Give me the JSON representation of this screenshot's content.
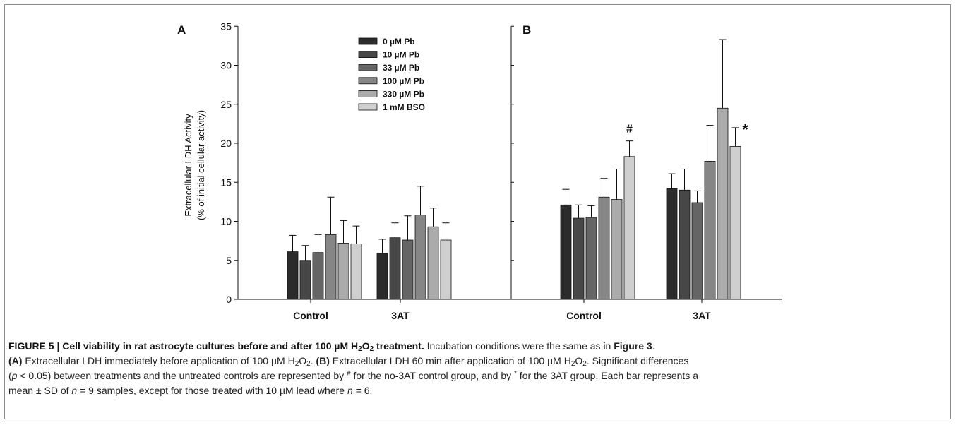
{
  "chart_data": [
    {
      "panel_label": "A",
      "type": "bar",
      "ylabel_line1": "Extracellular LDH Activity",
      "ylabel_line2": "(% of initial cellular activity)",
      "ylim": [
        0,
        35
      ],
      "yticks": [
        "0",
        "5",
        "10",
        "15",
        "20",
        "25",
        "30",
        "35"
      ],
      "categories": [
        "Control",
        "3AT"
      ],
      "series": [
        {
          "name": "0 µM Pb",
          "color": "#2b2b2b",
          "values": [
            6.1,
            5.9
          ],
          "errors": [
            2.1,
            1.8
          ]
        },
        {
          "name": "10 µM Pb",
          "color": "#474747",
          "values": [
            5.0,
            7.9
          ],
          "errors": [
            1.9,
            1.9
          ]
        },
        {
          "name": "33 µM Pb",
          "color": "#656565",
          "values": [
            6.0,
            7.6
          ],
          "errors": [
            2.3,
            3.1
          ]
        },
        {
          "name": "100 µM Pb",
          "color": "#868686",
          "values": [
            8.3,
            10.8
          ],
          "errors": [
            4.8,
            3.7
          ]
        },
        {
          "name": "330 µM Pb",
          "color": "#ababab",
          "values": [
            7.2,
            9.3
          ],
          "errors": [
            2.9,
            2.4
          ]
        },
        {
          "name": "1 mM BSO",
          "color": "#cfcfcf",
          "values": [
            7.1,
            7.6
          ],
          "errors": [
            2.3,
            2.2
          ]
        }
      ],
      "legend": "top-center",
      "grid": false
    },
    {
      "panel_label": "B",
      "type": "bar",
      "ylim": [
        0,
        35
      ],
      "categories": [
        "Control",
        "3AT"
      ],
      "series": [
        {
          "name": "0 µM Pb",
          "color": "#2b2b2b",
          "values": [
            12.1,
            14.2
          ],
          "errors": [
            2.0,
            1.9
          ]
        },
        {
          "name": "10 µM Pb",
          "color": "#474747",
          "values": [
            10.4,
            14.0
          ],
          "errors": [
            1.7,
            2.7
          ]
        },
        {
          "name": "33 µM Pb",
          "color": "#656565",
          "values": [
            10.5,
            12.4
          ],
          "errors": [
            1.5,
            1.5
          ]
        },
        {
          "name": "100 µM Pb",
          "color": "#868686",
          "values": [
            13.1,
            17.7
          ],
          "errors": [
            2.4,
            4.6
          ]
        },
        {
          "name": "330 µM Pb",
          "color": "#ababab",
          "values": [
            12.8,
            24.5
          ],
          "errors": [
            3.9,
            8.8
          ]
        },
        {
          "name": "1 mM BSO",
          "color": "#cfcfcf",
          "values": [
            18.3,
            19.6
          ],
          "errors": [
            2.0,
            2.4
          ]
        }
      ],
      "annotations": [
        {
          "text": "#",
          "category": "Control",
          "series": "1 mM BSO"
        },
        {
          "text": "*",
          "category": "3AT",
          "series": "1 mM BSO"
        }
      ],
      "grid": false
    }
  ],
  "caption": {
    "title": "FIGURE 5 | Cell viability in rat astrocyte cultures before and after 100 µM H₂O₂ treatment.",
    "sentence1": "Incubation conditions were the same as in",
    "figure_ref": "Figure 3"
  }
}
